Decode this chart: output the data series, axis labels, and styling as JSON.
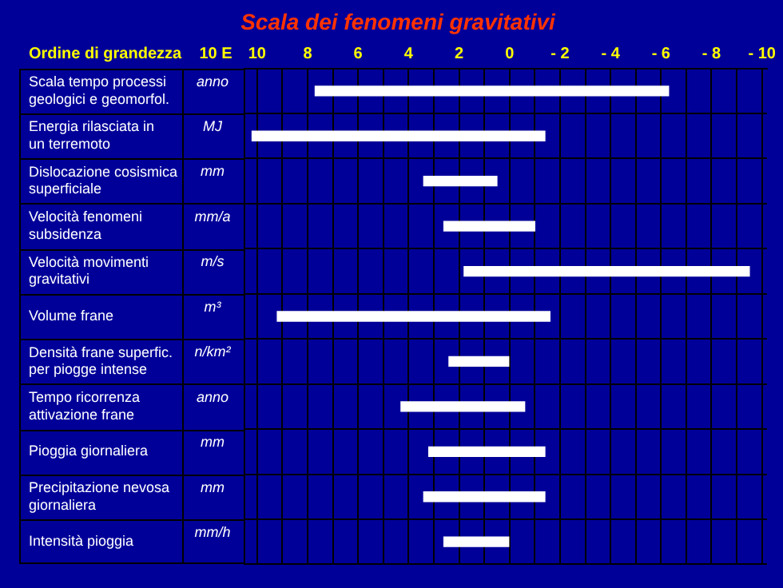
{
  "chart_data": {
    "type": "bar",
    "orientation": "horizontal",
    "title": "Scala dei fenomeni gravitativi",
    "ylabel": "Ordine di grandezza",
    "xlabel": "10 E",
    "categories": [
      "Scala tempo processi geologici e geomorfol.",
      "Energia rilasciata in un terremoto",
      "Dislocazione cosismica superficiale",
      "Velocità fenomeni subsidenza",
      "Velocità movimenti gravitativi",
      "Volume frane",
      "Densità frane superfic. per piogge intense",
      "Tempo ricorrenza attivazione frane",
      "Pioggia giornaliera",
      "Precipitazione nevosa giornaliera",
      "Intensità pioggia"
    ],
    "series": [
      {
        "color": "#ffffff",
        "values": [
          14.0,
          11.6,
          2.9,
          3.6,
          11.3,
          10.8,
          2.4,
          4.9,
          4.6,
          4.8,
          2.6
        ],
        "base": [
          -6.3,
          -1.4,
          0.5,
          -1.0,
          -9.5,
          -1.6,
          0,
          -0.6,
          -1.4,
          -1.4,
          0
        ]
      }
    ],
    "xlim": [
      10.5,
      -10.2
    ],
    "xticks": [
      10,
      {
        "value": 9,
        "label": null
      },
      8,
      {
        "value": 7,
        "label": null
      },
      6,
      {
        "value": 5,
        "label": null
      },
      4,
      {
        "value": 3,
        "label": null
      },
      2,
      {
        "value": 1,
        "label": null
      },
      0,
      {
        "value": -1,
        "label": null
      },
      {
        "value": -2,
        "label": "- 2"
      },
      {
        "value": -3,
        "label": null
      },
      {
        "value": -4,
        "label": "- 4"
      },
      {
        "value": -5,
        "label": null
      },
      {
        "value": -6,
        "label": "- 6"
      },
      {
        "value": -7,
        "label": null
      },
      {
        "value": -8,
        "label": "- 8"
      },
      {
        "value": -9,
        "label": null
      },
      {
        "value": -10,
        "label": "- 10"
      }
    ],
    "grid": true,
    "annotations": [
      "anno",
      "MJ",
      "mm",
      "mm/a",
      "m/s",
      "m³",
      "n/km²",
      "anno",
      "mm",
      "mm",
      "mm/h"
    ]
  }
}
